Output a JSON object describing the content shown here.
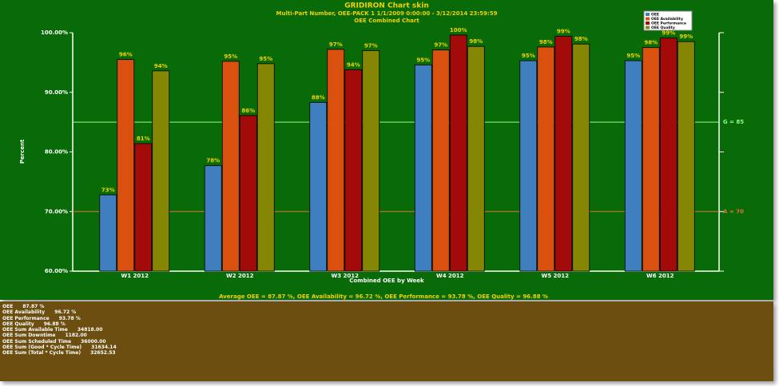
{
  "chart_data": {
    "type": "bar",
    "title": "GRIDIRON Chart skin",
    "subtitle": "Multi-Part Number, OEE-PACK 1   1/1/2009 0:00:00 - 3/12/2014 23:59:59",
    "chart_subtitle": "OEE Combined Chart",
    "x_label": "Combined OEE by Week",
    "y_label": "Percent",
    "footer": "Average OEE = 87.87 %, OEE Availability = 96.72 %, OEE Performance = 93.78 %, OEE Quality = 96.88 %",
    "categories": [
      "W1 2012",
      "W2 2012",
      "W3 2012",
      "W4 2012",
      "W5 2012",
      "W6 2012"
    ],
    "series": [
      {
        "name": "OEE",
        "color": "#3f7fbf",
        "values": [
          72.8,
          77.7,
          88.3,
          94.6,
          95.3,
          95.3
        ],
        "value_labels": [
          "73%",
          "78%",
          "88%",
          "95%",
          "95%",
          "95%"
        ]
      },
      {
        "name": "OEE Availability",
        "color": "#d9500f",
        "values": [
          95.5,
          95.2,
          97.2,
          97.1,
          97.6,
          97.5
        ],
        "value_labels": [
          "96%",
          "95%",
          "97%",
          "97%",
          "98%",
          "98%"
        ]
      },
      {
        "name": "OEE Performance",
        "color": "#a30a0a",
        "values": [
          81.4,
          86.1,
          93.8,
          99.6,
          99.4,
          99.1
        ],
        "value_labels": [
          "81%",
          "86%",
          "94%",
          "100%",
          "99%",
          "99%"
        ]
      },
      {
        "name": "OEE Quality",
        "color": "#868605",
        "values": [
          93.6,
          94.8,
          97.0,
          97.7,
          98.1,
          98.5
        ],
        "value_labels": [
          "94%",
          "95%",
          "97%",
          "98%",
          "98%",
          "99%"
        ]
      }
    ],
    "ylim": [
      60,
      100
    ],
    "yticks": [
      {
        "value": 60,
        "label": "60.00%"
      },
      {
        "value": 70,
        "label": "70.00%"
      },
      {
        "value": 80,
        "label": "80.00%"
      },
      {
        "value": 90,
        "label": "90.00%"
      },
      {
        "value": 100,
        "label": "100.00%"
      }
    ],
    "reference_lines": [
      {
        "label": "G = 85",
        "value": 85,
        "color": "#8cff8c"
      },
      {
        "label": "A = 70",
        "value": 70,
        "color": "#e0703a"
      }
    ],
    "legend": "top-right"
  },
  "summary": [
    [
      "OEE",
      "87.87 %"
    ],
    [
      "OEE Availability",
      "96.72 %"
    ],
    [
      "OEE Performance",
      "93.78 %"
    ],
    [
      "OEE Quality",
      "96.88 %"
    ],
    [
      "OEE Sum Available Time",
      "34818.00"
    ],
    [
      "OEE Sum Downtime",
      "1182.00"
    ],
    [
      "OEE Sum Scheduled Time",
      "36000.00"
    ],
    [
      "OEE Sum (Good * Cycle Time)",
      "31634.14"
    ],
    [
      "OEE Sum (Total * Cycle Time)",
      "32652.53"
    ]
  ]
}
